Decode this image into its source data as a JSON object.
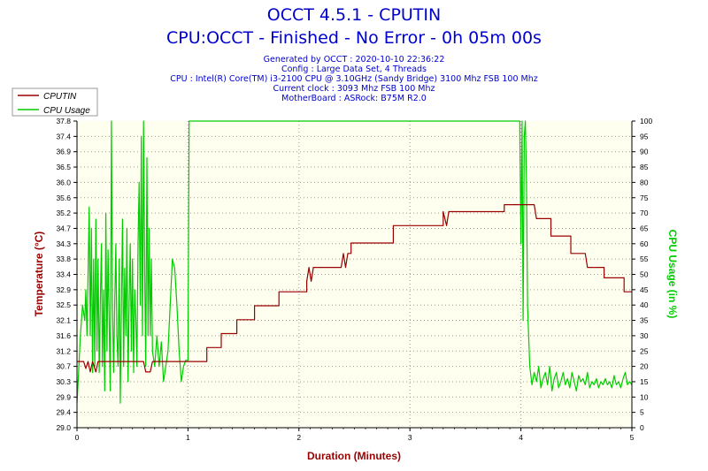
{
  "title": "OCCT 4.5.1 - CPUTIN",
  "subtitle": "CPU:OCCT - Finished - No Error - 0h 05m 00s",
  "info_lines": [
    "Generated by OCCT : 2020-10-10 22:36:22",
    "Config : Large Data Set, 4 Threads",
    "CPU : Intel(R) Core(TM) i3-2100 CPU @ 3.10GHz (Sandy Bridge) 3100 Mhz FSB 100 Mhz",
    "Current clock : 3093 Mhz FSB 100 Mhz",
    "MotherBoard : ASRock: B75M R2.0"
  ],
  "colors": {
    "temp": "#990000",
    "usage": "#00cc00",
    "grid": "#999999",
    "plot_bg": "#fffff0",
    "title": "#0000cc"
  },
  "chart_data": {
    "type": "line",
    "xlabel": "Duration (Minutes)",
    "ylabel_left": "Temperature (°C)",
    "ylabel_right": "CPU Usage (in %)",
    "xlim": [
      0,
      5
    ],
    "ylim_left": [
      29.0,
      37.8
    ],
    "ylim_right": [
      0,
      100
    ],
    "x_ticks": [
      "0",
      "1",
      "2",
      "3",
      "4",
      "5"
    ],
    "y_ticks_left": [
      "29.0",
      "29.4",
      "29.9",
      "30.3",
      "30.7",
      "31.2",
      "31.6",
      "32.1",
      "32.5",
      "32.9",
      "33.4",
      "33.8",
      "34.3",
      "34.7",
      "35.2",
      "35.6",
      "36.0",
      "36.5",
      "36.9",
      "37.4",
      "37.8"
    ],
    "y_ticks_right": [
      "0",
      "5",
      "10",
      "15",
      "20",
      "25",
      "30",
      "35",
      "40",
      "45",
      "50",
      "55",
      "60",
      "65",
      "70",
      "75",
      "80",
      "85",
      "90",
      "95",
      "100"
    ],
    "legend_position": "top-left",
    "grid": true,
    "series": [
      {
        "name": "CPUTIN",
        "axis": "left",
        "points": [
          [
            0,
            30.9
          ],
          [
            0.06,
            30.9
          ],
          [
            0.08,
            30.7
          ],
          [
            0.1,
            30.9
          ],
          [
            0.12,
            30.6
          ],
          [
            0.14,
            30.9
          ],
          [
            0.17,
            30.6
          ],
          [
            0.19,
            30.9
          ],
          [
            0.6,
            30.9
          ],
          [
            0.62,
            30.6
          ],
          [
            0.66,
            30.6
          ],
          [
            0.68,
            30.9
          ],
          [
            1.17,
            30.9
          ],
          [
            1.17,
            31.3
          ],
          [
            1.3,
            31.3
          ],
          [
            1.3,
            31.7
          ],
          [
            1.44,
            31.7
          ],
          [
            1.44,
            32.1
          ],
          [
            1.6,
            32.1
          ],
          [
            1.6,
            32.5
          ],
          [
            1.82,
            32.5
          ],
          [
            1.82,
            32.9
          ],
          [
            2.07,
            32.9
          ],
          [
            2.07,
            33.2
          ],
          [
            2.09,
            33.6
          ],
          [
            2.11,
            33.2
          ],
          [
            2.13,
            33.6
          ],
          [
            2.38,
            33.6
          ],
          [
            2.4,
            34.0
          ],
          [
            2.42,
            33.6
          ],
          [
            2.44,
            34.0
          ],
          [
            2.47,
            34.0
          ],
          [
            2.47,
            34.3
          ],
          [
            2.85,
            34.3
          ],
          [
            2.85,
            34.8
          ],
          [
            3.3,
            34.8
          ],
          [
            3.3,
            35.2
          ],
          [
            3.33,
            34.8
          ],
          [
            3.35,
            35.2
          ],
          [
            3.85,
            35.2
          ],
          [
            3.85,
            35.4
          ],
          [
            4.12,
            35.4
          ],
          [
            4.14,
            35.0
          ],
          [
            4.27,
            35.0
          ],
          [
            4.27,
            34.5
          ],
          [
            4.45,
            34.5
          ],
          [
            4.45,
            34.0
          ],
          [
            4.58,
            34.0
          ],
          [
            4.6,
            33.6
          ],
          [
            4.75,
            33.6
          ],
          [
            4.75,
            33.3
          ],
          [
            4.93,
            33.3
          ],
          [
            4.93,
            32.9
          ],
          [
            5.0,
            32.9
          ]
        ]
      },
      {
        "name": "CPU Usage",
        "axis": "right",
        "points": [
          [
            0,
            8
          ],
          [
            0.01,
            15
          ],
          [
            0.03,
            30
          ],
          [
            0.05,
            40
          ],
          [
            0.07,
            35
          ],
          [
            0.08,
            45
          ],
          [
            0.09,
            30
          ],
          [
            0.1,
            50
          ],
          [
            0.11,
            72
          ],
          [
            0.12,
            30
          ],
          [
            0.13,
            65
          ],
          [
            0.14,
            18
          ],
          [
            0.15,
            55
          ],
          [
            0.16,
            20
          ],
          [
            0.17,
            68
          ],
          [
            0.18,
            25
          ],
          [
            0.19,
            55
          ],
          [
            0.2,
            18
          ],
          [
            0.21,
            40
          ],
          [
            0.22,
            60
          ],
          [
            0.23,
            20
          ],
          [
            0.24,
            45
          ],
          [
            0.25,
            12
          ],
          [
            0.26,
            70
          ],
          [
            0.27,
            25
          ],
          [
            0.28,
            58
          ],
          [
            0.3,
            12
          ],
          [
            0.31,
            100
          ],
          [
            0.32,
            40
          ],
          [
            0.33,
            18
          ],
          [
            0.34,
            40
          ],
          [
            0.35,
            60
          ],
          [
            0.36,
            30
          ],
          [
            0.37,
            20
          ],
          [
            0.38,
            55
          ],
          [
            0.39,
            8
          ],
          [
            0.4,
            40
          ],
          [
            0.41,
            68
          ],
          [
            0.42,
            20
          ],
          [
            0.43,
            52
          ],
          [
            0.44,
            30
          ],
          [
            0.45,
            65
          ],
          [
            0.46,
            15
          ],
          [
            0.47,
            40
          ],
          [
            0.48,
            60
          ],
          [
            0.49,
            25
          ],
          [
            0.5,
            55
          ],
          [
            0.51,
            18
          ],
          [
            0.52,
            45
          ],
          [
            0.53,
            35
          ],
          [
            0.54,
            20
          ],
          [
            0.55,
            60
          ],
          [
            0.56,
            80
          ],
          [
            0.57,
            40
          ],
          [
            0.58,
            95
          ],
          [
            0.59,
            30
          ],
          [
            0.6,
            100
          ],
          [
            0.61,
            50
          ],
          [
            0.62,
            20
          ],
          [
            0.63,
            88
          ],
          [
            0.64,
            30
          ],
          [
            0.65,
            65
          ],
          [
            0.66,
            30
          ],
          [
            0.67,
            55
          ],
          [
            0.68,
            25
          ],
          [
            0.7,
            20
          ],
          [
            0.72,
            30
          ],
          [
            0.74,
            20
          ],
          [
            0.76,
            28
          ],
          [
            0.78,
            15
          ],
          [
            0.8,
            20
          ],
          [
            0.82,
            25
          ],
          [
            0.84,
            40
          ],
          [
            0.86,
            55
          ],
          [
            0.88,
            52
          ],
          [
            0.9,
            40
          ],
          [
            0.92,
            25
          ],
          [
            0.94,
            15
          ],
          [
            0.96,
            20
          ],
          [
            0.98,
            22
          ],
          [
            1.0,
            22
          ],
          [
            1.01,
            100
          ],
          [
            3.99,
            100
          ],
          [
            4.0,
            60
          ],
          [
            4.01,
            100
          ],
          [
            4.02,
            35
          ],
          [
            4.03,
            95
          ],
          [
            4.04,
            100
          ],
          [
            4.05,
            80
          ],
          [
            4.06,
            40
          ],
          [
            4.08,
            20
          ],
          [
            4.1,
            14
          ],
          [
            4.12,
            18
          ],
          [
            4.14,
            15
          ],
          [
            4.16,
            20
          ],
          [
            4.18,
            13
          ],
          [
            4.2,
            16
          ],
          [
            4.22,
            18
          ],
          [
            4.24,
            14
          ],
          [
            4.26,
            20
          ],
          [
            4.28,
            12
          ],
          [
            4.3,
            16
          ],
          [
            4.32,
            18
          ],
          [
            4.34,
            13
          ],
          [
            4.36,
            15
          ],
          [
            4.38,
            18
          ],
          [
            4.4,
            14
          ],
          [
            4.42,
            16
          ],
          [
            4.44,
            13
          ],
          [
            4.46,
            18
          ],
          [
            4.48,
            15
          ],
          [
            4.5,
            12
          ],
          [
            4.52,
            17
          ],
          [
            4.54,
            15
          ],
          [
            4.56,
            16
          ],
          [
            4.58,
            14
          ],
          [
            4.6,
            18
          ],
          [
            4.62,
            13
          ],
          [
            4.64,
            15
          ],
          [
            4.66,
            14
          ],
          [
            4.68,
            16
          ],
          [
            4.7,
            13
          ],
          [
            4.72,
            15
          ],
          [
            4.74,
            14
          ],
          [
            4.76,
            16
          ],
          [
            4.78,
            14
          ],
          [
            4.8,
            15
          ],
          [
            4.82,
            13
          ],
          [
            4.84,
            17
          ],
          [
            4.86,
            14
          ],
          [
            4.88,
            15
          ],
          [
            4.9,
            13
          ],
          [
            4.92,
            16
          ],
          [
            4.94,
            18
          ],
          [
            4.96,
            14
          ],
          [
            4.98,
            15
          ],
          [
            5.0,
            14
          ]
        ]
      }
    ]
  }
}
